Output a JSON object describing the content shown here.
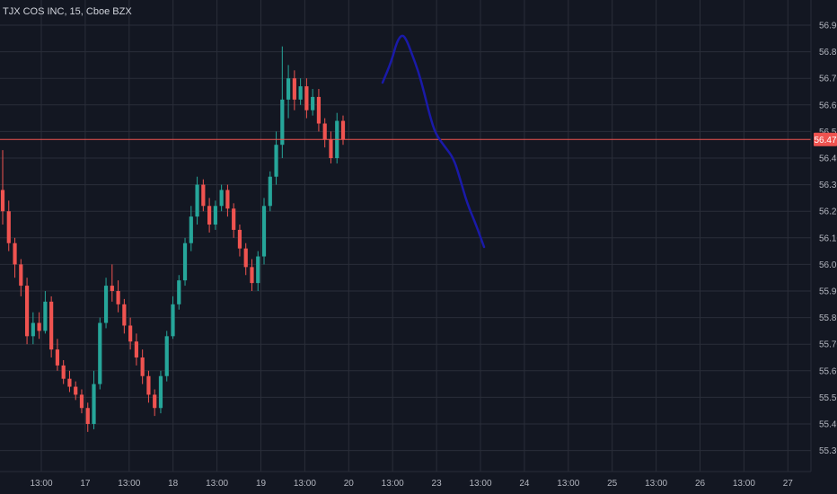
{
  "symbol_title": "TJX COS INC, 15, Cboe BZX",
  "colors": {
    "background": "#131722",
    "grid": "#2a2e39",
    "up": "#26a69a",
    "down": "#ef5350",
    "price_line": "#ef5350",
    "drawing": "#1a1aa8",
    "text": "#b2b5be"
  },
  "chart_data": {
    "type": "candlestick",
    "title": "TJX COS INC, 15, Cboe BZX",
    "y_axis": {
      "min": 55.25,
      "max": 56.95,
      "ticks": [
        "56.90",
        "56.80",
        "56.70",
        "56.60",
        "56.50",
        "56.40",
        "56.30",
        "56.20",
        "56.10",
        "56.00",
        "55.90",
        "55.80",
        "55.70",
        "55.60",
        "55.50",
        "55.40",
        "55.30"
      ]
    },
    "x_axis": {
      "ticks": [
        "13:00",
        "17",
        "13:00",
        "18",
        "13:00",
        "19",
        "13:00",
        "20",
        "13:00",
        "23",
        "13:00",
        "24",
        "13:00",
        "25",
        "13:00",
        "26",
        "13:00",
        "27"
      ]
    },
    "last_price": "56.47",
    "grid": true,
    "candles": [
      [
        56.28,
        56.43,
        56.15,
        56.2
      ],
      [
        56.2,
        56.24,
        56.05,
        56.08
      ],
      [
        56.08,
        56.1,
        55.95,
        56.0
      ],
      [
        56.0,
        56.02,
        55.88,
        55.92
      ],
      [
        55.92,
        55.95,
        55.7,
        55.73
      ],
      [
        55.73,
        55.82,
        55.7,
        55.78
      ],
      [
        55.78,
        55.82,
        55.72,
        55.75
      ],
      [
        55.75,
        55.9,
        55.74,
        55.86
      ],
      [
        55.86,
        55.88,
        55.65,
        55.68
      ],
      [
        55.68,
        55.72,
        55.6,
        55.62
      ],
      [
        55.62,
        55.64,
        55.55,
        55.57
      ],
      [
        55.57,
        55.6,
        55.52,
        55.54
      ],
      [
        55.54,
        55.56,
        55.49,
        55.51
      ],
      [
        55.51,
        55.53,
        55.44,
        55.46
      ],
      [
        55.46,
        55.48,
        55.37,
        55.4
      ],
      [
        55.4,
        55.6,
        55.38,
        55.55
      ],
      [
        55.55,
        55.8,
        55.53,
        55.78
      ],
      [
        55.78,
        55.95,
        55.76,
        55.92
      ],
      [
        55.92,
        56.0,
        55.86,
        55.9
      ],
      [
        55.9,
        55.94,
        55.82,
        55.85
      ],
      [
        55.85,
        55.87,
        55.74,
        55.77
      ],
      [
        55.77,
        55.8,
        55.68,
        55.71
      ],
      [
        55.71,
        55.74,
        55.62,
        55.65
      ],
      [
        55.65,
        55.68,
        55.55,
        55.58
      ],
      [
        55.58,
        55.6,
        55.48,
        55.51
      ],
      [
        55.51,
        55.53,
        55.43,
        55.46
      ],
      [
        55.46,
        55.6,
        55.44,
        55.58
      ],
      [
        55.58,
        55.75,
        55.56,
        55.73
      ],
      [
        55.73,
        55.88,
        55.72,
        55.85
      ],
      [
        55.85,
        55.96,
        55.83,
        55.94
      ],
      [
        55.94,
        56.1,
        55.92,
        56.08
      ],
      [
        56.08,
        56.22,
        56.05,
        56.18
      ],
      [
        56.18,
        56.33,
        56.15,
        56.3
      ],
      [
        56.3,
        56.32,
        56.2,
        56.22
      ],
      [
        56.22,
        56.25,
        56.12,
        56.15
      ],
      [
        56.15,
        56.24,
        56.13,
        56.22
      ],
      [
        56.22,
        56.3,
        56.2,
        56.28
      ],
      [
        56.28,
        56.3,
        56.18,
        56.21
      ],
      [
        56.21,
        56.23,
        56.1,
        56.13
      ],
      [
        56.13,
        56.15,
        56.03,
        56.06
      ],
      [
        56.06,
        56.08,
        55.96,
        55.99
      ],
      [
        55.99,
        56.02,
        55.9,
        55.93
      ],
      [
        55.93,
        56.05,
        55.9,
        56.03
      ],
      [
        56.03,
        56.25,
        56.0,
        56.22
      ],
      [
        56.22,
        56.35,
        56.2,
        56.33
      ],
      [
        56.33,
        56.5,
        56.3,
        56.45
      ],
      [
        56.45,
        56.82,
        56.4,
        56.62
      ],
      [
        56.62,
        56.75,
        56.55,
        56.7
      ],
      [
        56.7,
        56.73,
        56.58,
        56.62
      ],
      [
        56.62,
        56.7,
        56.6,
        56.67
      ],
      [
        56.67,
        56.7,
        56.55,
        56.58
      ],
      [
        56.58,
        56.66,
        56.56,
        56.63
      ],
      [
        56.63,
        56.66,
        56.5,
        56.53
      ],
      [
        56.53,
        56.55,
        56.44,
        56.47
      ],
      [
        56.47,
        56.5,
        56.38,
        56.4
      ],
      [
        56.4,
        56.57,
        56.38,
        56.54
      ],
      [
        56.54,
        56.56,
        56.45,
        56.47
      ]
    ],
    "drawing_line": [
      [
        "13:00 (19)",
        56.68
      ],
      [
        "13:00 (20)",
        56.86
      ],
      [
        "23",
        56.5
      ],
      [
        "13:00 (23)",
        56.4
      ],
      [
        "13:00 (23)",
        56.05
      ]
    ]
  }
}
